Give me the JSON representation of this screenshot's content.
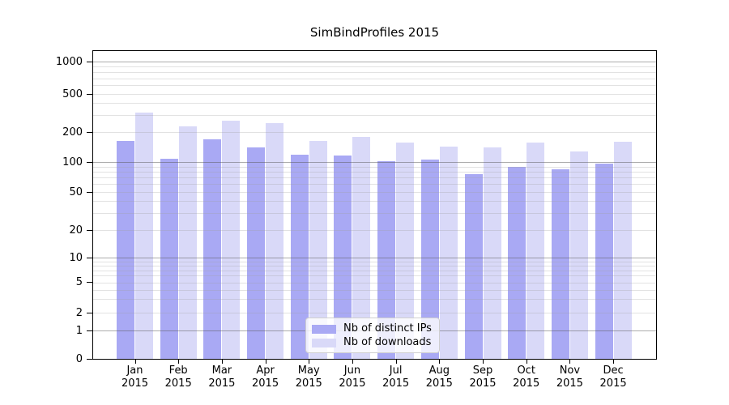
{
  "chart_data": {
    "type": "bar",
    "title": "SimBindProfiles 2015",
    "months": [
      "Jan",
      "Feb",
      "Mar",
      "Apr",
      "May",
      "Jun",
      "Jul",
      "Aug",
      "Sep",
      "Oct",
      "Nov",
      "Dec"
    ],
    "year_label": "2015",
    "series": [
      {
        "name": "Nb of distinct IPs",
        "color": "#a9a9f4",
        "values": [
          162,
          108,
          170,
          141,
          119,
          117,
          102,
          105,
          75,
          89,
          84,
          97
        ]
      },
      {
        "name": "Nb of downloads",
        "color": "#d9d9f8",
        "values": [
          318,
          229,
          264,
          249,
          164,
          179,
          157,
          143,
          140,
          157,
          128,
          161
        ]
      }
    ],
    "y_ticks": [
      0,
      1,
      2,
      5,
      10,
      20,
      50,
      100,
      200,
      500,
      1000
    ],
    "y_scale": "log above 1, linear 0-1 (symlog)",
    "ylim": [
      0,
      1250
    ],
    "grid": "horizontal major and minor, drawn over bars",
    "legend_position": "lower center inside plot",
    "colors": {
      "major_grid": "#b3b3b3",
      "minor_grid": "#e7e7e7",
      "axis": "#000000",
      "background": "#ffffff"
    }
  }
}
